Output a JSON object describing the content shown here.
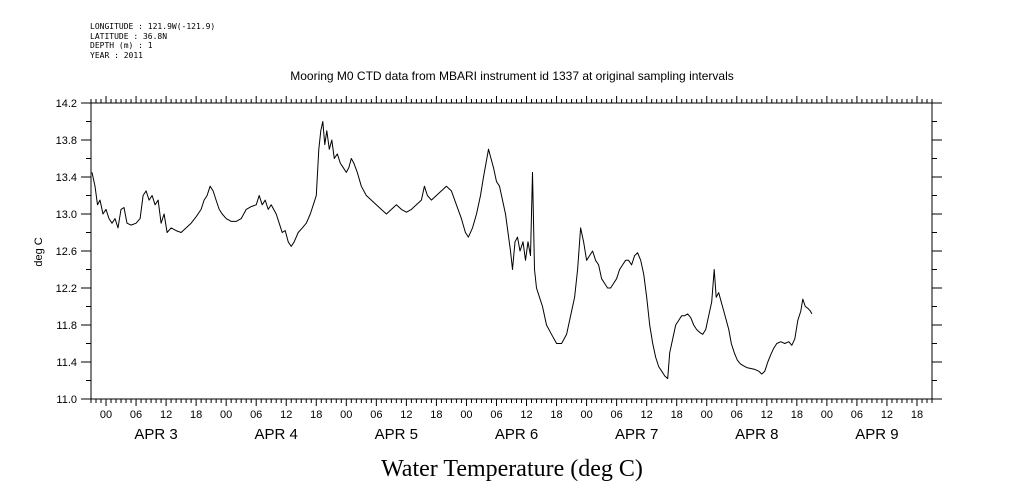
{
  "header": {
    "longitude": "LONGITUDE : 121.9W(-121.9)",
    "latitude": "LATITUDE : 36.8N",
    "depth": "DEPTH (m) : 1",
    "year": "YEAR : 2011"
  },
  "chart_data": {
    "type": "line",
    "title": "Mooring M0 CTD data from MBARI instrument id 1337 at original sampling intervals",
    "xlabel": "Water Temperature (deg C)",
    "ylabel": "deg C",
    "ylim": [
      11.0,
      14.2
    ],
    "yticks": [
      "11.0",
      "11.4",
      "11.8",
      "12.2",
      "12.6",
      "13.0",
      "13.4",
      "13.8",
      "14.2"
    ],
    "xlim_hours": [
      -3,
      165
    ],
    "hour_ticks": [
      "00",
      "06",
      "12",
      "18",
      "00",
      "06",
      "12",
      "18",
      "00",
      "06",
      "12",
      "18",
      "00",
      "06",
      "12",
      "18",
      "00",
      "06",
      "12",
      "18",
      "00",
      "06",
      "12",
      "18",
      "00",
      "06",
      "12",
      "18"
    ],
    "day_labels": [
      "APR 3",
      "APR 4",
      "APR 5",
      "APR 6",
      "APR 7",
      "APR 8",
      "APR 9"
    ],
    "grid": false,
    "series": [
      {
        "points": [
          [
            -2.8,
            13.45
          ],
          [
            -2.2,
            13.3
          ],
          [
            -1.7,
            13.1
          ],
          [
            -1.2,
            13.15
          ],
          [
            -0.6,
            13.0
          ],
          [
            0,
            13.05
          ],
          [
            0.6,
            12.95
          ],
          [
            1.2,
            12.9
          ],
          [
            1.8,
            12.95
          ],
          [
            2.4,
            12.85
          ],
          [
            3.0,
            13.05
          ],
          [
            3.6,
            13.07
          ],
          [
            4.2,
            12.9
          ],
          [
            5.0,
            12.88
          ],
          [
            6.0,
            12.9
          ],
          [
            6.8,
            12.95
          ],
          [
            7.4,
            13.2
          ],
          [
            8.0,
            13.25
          ],
          [
            8.6,
            13.15
          ],
          [
            9.2,
            13.2
          ],
          [
            9.8,
            13.1
          ],
          [
            10.4,
            13.15
          ],
          [
            11.0,
            12.9
          ],
          [
            11.6,
            13.0
          ],
          [
            12.2,
            12.8
          ],
          [
            13.0,
            12.85
          ],
          [
            14.0,
            12.82
          ],
          [
            15.0,
            12.8
          ],
          [
            16.0,
            12.85
          ],
          [
            17.0,
            12.9
          ],
          [
            18.0,
            12.97
          ],
          [
            19.0,
            13.05
          ],
          [
            19.6,
            13.15
          ],
          [
            20.2,
            13.2
          ],
          [
            20.8,
            13.3
          ],
          [
            21.4,
            13.25
          ],
          [
            22.0,
            13.15
          ],
          [
            22.6,
            13.05
          ],
          [
            23.2,
            13.0
          ],
          [
            24.0,
            12.95
          ],
          [
            25.0,
            12.92
          ],
          [
            26.0,
            12.92
          ],
          [
            27.0,
            12.95
          ],
          [
            28.0,
            13.05
          ],
          [
            29.0,
            13.08
          ],
          [
            30.0,
            13.1
          ],
          [
            30.6,
            13.2
          ],
          [
            31.2,
            13.1
          ],
          [
            31.8,
            13.15
          ],
          [
            32.4,
            13.05
          ],
          [
            33.0,
            13.1
          ],
          [
            34.0,
            13.0
          ],
          [
            34.6,
            12.9
          ],
          [
            35.2,
            12.8
          ],
          [
            35.8,
            12.82
          ],
          [
            36.4,
            12.7
          ],
          [
            37.0,
            12.65
          ],
          [
            37.6,
            12.7
          ],
          [
            38.4,
            12.8
          ],
          [
            39.2,
            12.85
          ],
          [
            40.0,
            12.9
          ],
          [
            40.8,
            13.0
          ],
          [
            41.4,
            13.1
          ],
          [
            42.0,
            13.2
          ],
          [
            42.5,
            13.7
          ],
          [
            42.9,
            13.9
          ],
          [
            43.3,
            14.0
          ],
          [
            43.7,
            13.75
          ],
          [
            44.1,
            13.9
          ],
          [
            44.6,
            13.7
          ],
          [
            45.1,
            13.8
          ],
          [
            45.6,
            13.6
          ],
          [
            46.2,
            13.65
          ],
          [
            46.8,
            13.55
          ],
          [
            47.4,
            13.5
          ],
          [
            48.0,
            13.45
          ],
          [
            48.5,
            13.5
          ],
          [
            49.0,
            13.6
          ],
          [
            49.5,
            13.55
          ],
          [
            50.2,
            13.45
          ],
          [
            51.0,
            13.3
          ],
          [
            52.0,
            13.2
          ],
          [
            53.0,
            13.15
          ],
          [
            54.0,
            13.1
          ],
          [
            55.0,
            13.05
          ],
          [
            56.0,
            13.0
          ],
          [
            57.0,
            13.05
          ],
          [
            58.0,
            13.1
          ],
          [
            59.0,
            13.05
          ],
          [
            60.0,
            13.02
          ],
          [
            61.0,
            13.05
          ],
          [
            62.0,
            13.1
          ],
          [
            63.0,
            13.15
          ],
          [
            63.6,
            13.3
          ],
          [
            64.2,
            13.2
          ],
          [
            65.0,
            13.15
          ],
          [
            66.0,
            13.2
          ],
          [
            67.0,
            13.25
          ],
          [
            68.0,
            13.3
          ],
          [
            69.0,
            13.25
          ],
          [
            70.0,
            13.1
          ],
          [
            71.0,
            12.95
          ],
          [
            71.8,
            12.8
          ],
          [
            72.4,
            12.75
          ],
          [
            73.2,
            12.85
          ],
          [
            74.0,
            13.0
          ],
          [
            74.8,
            13.2
          ],
          [
            75.4,
            13.4
          ],
          [
            75.9,
            13.55
          ],
          [
            76.4,
            13.7
          ],
          [
            76.9,
            13.6
          ],
          [
            77.4,
            13.5
          ],
          [
            78.0,
            13.35
          ],
          [
            78.6,
            13.3
          ],
          [
            79.2,
            13.15
          ],
          [
            79.8,
            13.0
          ],
          [
            80.3,
            12.8
          ],
          [
            80.8,
            12.6
          ],
          [
            81.2,
            12.4
          ],
          [
            81.7,
            12.7
          ],
          [
            82.2,
            12.75
          ],
          [
            82.7,
            12.6
          ],
          [
            83.3,
            12.7
          ],
          [
            83.8,
            12.5
          ],
          [
            84.3,
            12.7
          ],
          [
            84.8,
            12.55
          ],
          [
            85.2,
            13.45
          ],
          [
            85.6,
            12.4
          ],
          [
            86.0,
            12.2
          ],
          [
            86.6,
            12.1
          ],
          [
            87.2,
            12.0
          ],
          [
            88.0,
            11.8
          ],
          [
            89.0,
            11.7
          ],
          [
            90.0,
            11.6
          ],
          [
            91.0,
            11.6
          ],
          [
            92.0,
            11.7
          ],
          [
            93.0,
            11.95
          ],
          [
            93.6,
            12.1
          ],
          [
            94.2,
            12.4
          ],
          [
            94.8,
            12.85
          ],
          [
            95.4,
            12.7
          ],
          [
            96.0,
            12.5
          ],
          [
            96.6,
            12.55
          ],
          [
            97.2,
            12.6
          ],
          [
            97.8,
            12.5
          ],
          [
            98.4,
            12.45
          ],
          [
            99.0,
            12.3
          ],
          [
            99.6,
            12.25
          ],
          [
            100.2,
            12.2
          ],
          [
            100.8,
            12.2
          ],
          [
            101.4,
            12.25
          ],
          [
            102.0,
            12.3
          ],
          [
            102.6,
            12.4
          ],
          [
            103.2,
            12.45
          ],
          [
            103.8,
            12.5
          ],
          [
            104.4,
            12.5
          ],
          [
            105.0,
            12.45
          ],
          [
            105.6,
            12.55
          ],
          [
            106.2,
            12.58
          ],
          [
            106.8,
            12.5
          ],
          [
            107.4,
            12.35
          ],
          [
            108.0,
            12.1
          ],
          [
            108.6,
            11.8
          ],
          [
            109.2,
            11.6
          ],
          [
            109.8,
            11.45
          ],
          [
            110.4,
            11.35
          ],
          [
            111.0,
            11.3
          ],
          [
            111.6,
            11.25
          ],
          [
            112.2,
            11.22
          ],
          [
            112.6,
            11.5
          ],
          [
            113.2,
            11.65
          ],
          [
            113.8,
            11.8
          ],
          [
            114.4,
            11.85
          ],
          [
            115.0,
            11.9
          ],
          [
            115.6,
            11.9
          ],
          [
            116.2,
            11.92
          ],
          [
            116.8,
            11.88
          ],
          [
            117.4,
            11.8
          ],
          [
            118.0,
            11.75
          ],
          [
            118.6,
            11.72
          ],
          [
            119.2,
            11.7
          ],
          [
            119.8,
            11.75
          ],
          [
            120.4,
            11.9
          ],
          [
            121.0,
            12.05
          ],
          [
            121.5,
            12.4
          ],
          [
            121.9,
            12.1
          ],
          [
            122.4,
            12.15
          ],
          [
            122.9,
            12.05
          ],
          [
            123.4,
            11.95
          ],
          [
            123.9,
            11.85
          ],
          [
            124.4,
            11.75
          ],
          [
            124.9,
            11.6
          ],
          [
            125.5,
            11.5
          ],
          [
            126.1,
            11.42
          ],
          [
            126.7,
            11.38
          ],
          [
            127.3,
            11.36
          ],
          [
            128.0,
            11.34
          ],
          [
            128.8,
            11.33
          ],
          [
            129.6,
            11.32
          ],
          [
            130.4,
            11.3
          ],
          [
            131.0,
            11.27
          ],
          [
            131.6,
            11.3
          ],
          [
            132.2,
            11.4
          ],
          [
            132.8,
            11.48
          ],
          [
            133.4,
            11.55
          ],
          [
            134.0,
            11.6
          ],
          [
            134.8,
            11.62
          ],
          [
            135.6,
            11.6
          ],
          [
            136.4,
            11.62
          ],
          [
            137.0,
            11.58
          ],
          [
            137.6,
            11.65
          ],
          [
            138.2,
            11.85
          ],
          [
            138.8,
            11.95
          ],
          [
            139.2,
            12.08
          ],
          [
            139.7,
            12.0
          ],
          [
            140.2,
            11.98
          ],
          [
            140.7,
            11.95
          ],
          [
            141.0,
            11.92
          ]
        ]
      }
    ]
  }
}
